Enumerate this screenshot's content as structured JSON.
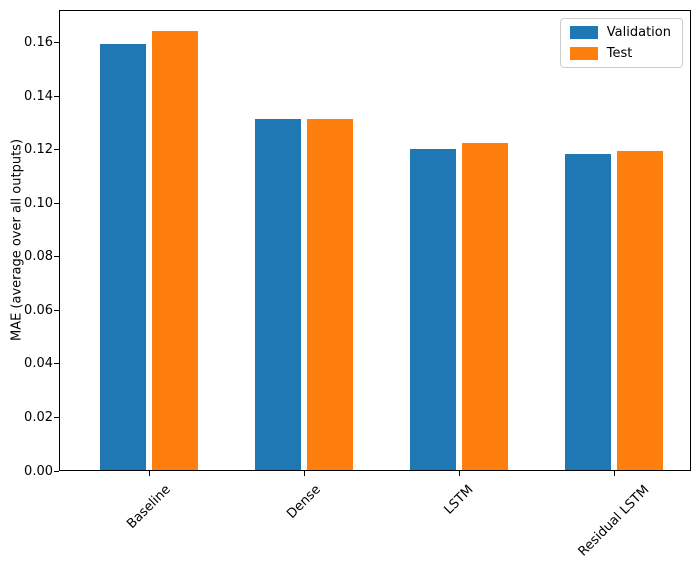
{
  "figure": {
    "background": "#ffffff",
    "axis_color": "#000000",
    "text_color": "#000000"
  },
  "chart_data": {
    "type": "bar",
    "categories": [
      "Baseline",
      "Dense",
      "LSTM",
      "Residual LSTM"
    ],
    "series": [
      {
        "name": "Validation",
        "color": "#1f77b4",
        "values": [
          0.159,
          0.131,
          0.12,
          0.118
        ]
      },
      {
        "name": "Test",
        "color": "#ff7f0e",
        "values": [
          0.164,
          0.131,
          0.122,
          0.119
        ]
      }
    ],
    "title": "",
    "xlabel": "",
    "ylabel": "MAE (average over all outputs)",
    "ylim": [
      0,
      0.1722
    ],
    "yticks": [
      0.0,
      0.02,
      0.04,
      0.06,
      0.08,
      0.1,
      0.12,
      0.14,
      0.16
    ],
    "ytick_labels": [
      "0.00",
      "0.02",
      "0.04",
      "0.06",
      "0.08",
      "0.10",
      "0.12",
      "0.14",
      "0.16"
    ],
    "xtick_rotation_deg": 45,
    "grid": false,
    "legend_position": "upper right"
  }
}
